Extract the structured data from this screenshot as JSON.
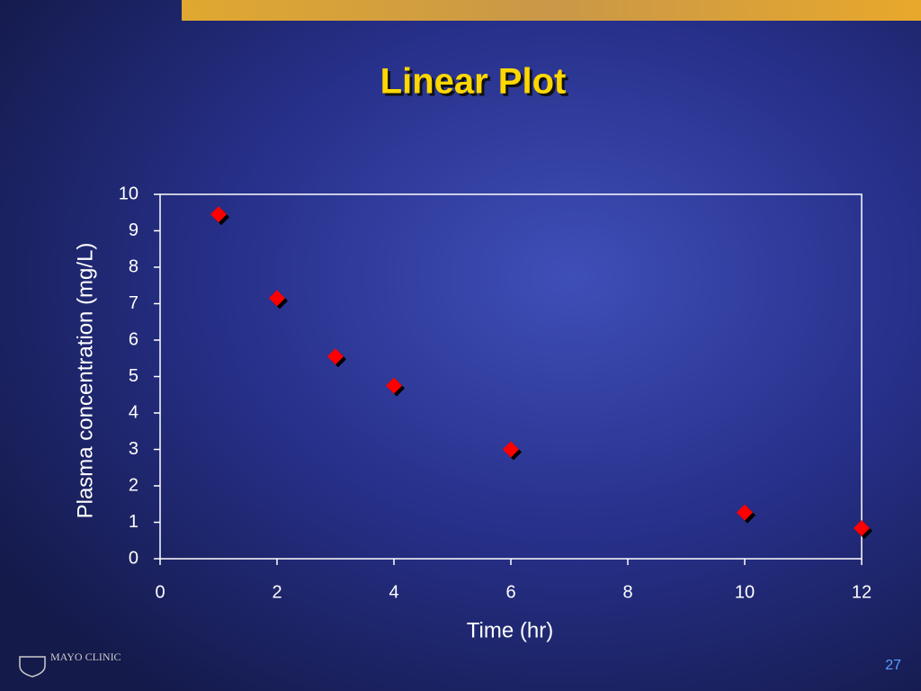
{
  "chart_data": {
    "type": "scatter",
    "title": "Linear Plot",
    "x_label": "Time (hr)",
    "y_label": "Plasma concentration (mg/L)",
    "x": [
      1,
      2,
      3,
      4,
      6,
      10,
      12
    ],
    "series": [
      {
        "color": "#ff0000",
        "values": [
          9.45,
          7.15,
          5.55,
          4.75,
          3.0,
          1.27,
          0.84
        ]
      }
    ],
    "xlim": [
      0,
      12
    ],
    "xticks": [
      0,
      2,
      4,
      6,
      8,
      10,
      12
    ],
    "ylim": [
      0,
      10
    ],
    "yticks": [
      0,
      1,
      2,
      3,
      4,
      5,
      6,
      7,
      8,
      9,
      10
    ]
  },
  "footer": {
    "logo": "MAYO CLINIC",
    "page_number": "27"
  }
}
